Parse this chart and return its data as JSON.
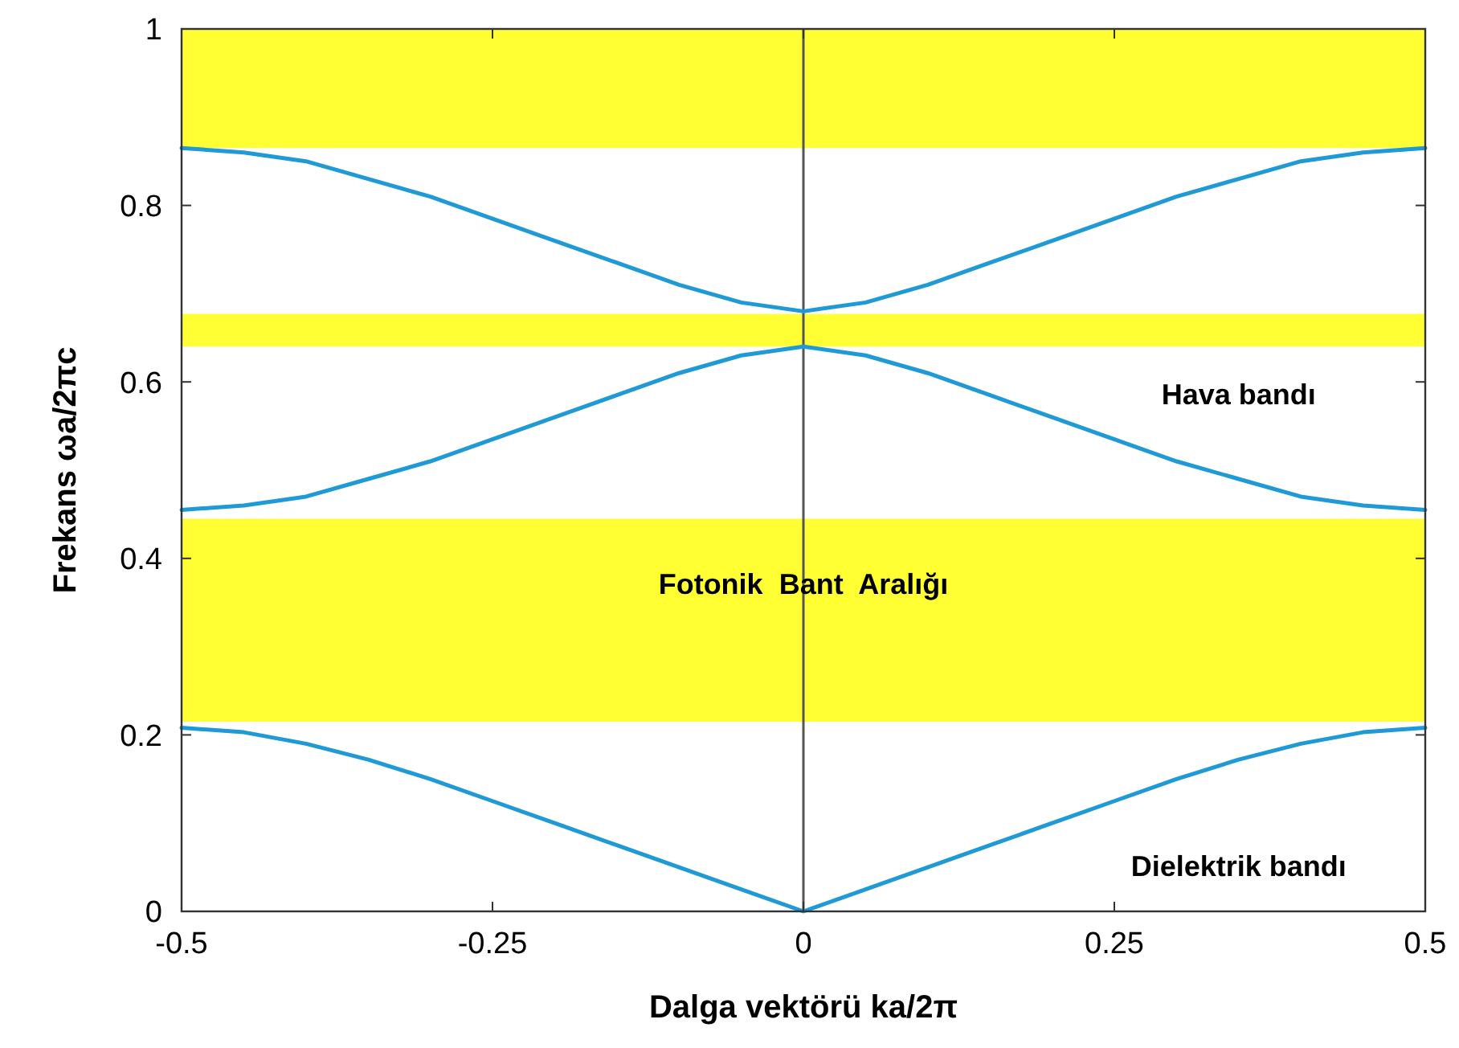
{
  "chart_data": {
    "type": "line",
    "xlabel": "Dalga vektörü ka/2π",
    "ylabel": "Frekans ωa/2πc",
    "xlim": [
      -0.5,
      0.5
    ],
    "ylim": [
      0,
      1
    ],
    "xticks": [
      -0.5,
      -0.25,
      0,
      0.25,
      0.5
    ],
    "yticks": [
      0,
      0.2,
      0.4,
      0.6,
      0.8,
      1
    ],
    "grid": false,
    "series": [
      {
        "color": "#1f9ad6",
        "x": [
          -0.5,
          -0.45,
          -0.4,
          -0.35,
          -0.3,
          -0.25,
          -0.2,
          -0.15,
          -0.1,
          -0.05,
          0,
          0.05,
          0.1,
          0.15,
          0.2,
          0.25,
          0.3,
          0.35,
          0.4,
          0.45,
          0.5
        ],
        "values": [
          0.208,
          0.203,
          0.19,
          0.172,
          0.15,
          0.125,
          0.1,
          0.075,
          0.05,
          0.025,
          0,
          0.025,
          0.05,
          0.075,
          0.1,
          0.125,
          0.15,
          0.172,
          0.19,
          0.203,
          0.208
        ]
      },
      {
        "color": "#1f9ad6",
        "x": [
          -0.5,
          -0.45,
          -0.4,
          -0.35,
          -0.3,
          -0.25,
          -0.2,
          -0.15,
          -0.1,
          -0.05,
          0,
          0.05,
          0.1,
          0.15,
          0.2,
          0.25,
          0.3,
          0.35,
          0.4,
          0.45,
          0.5
        ],
        "values": [
          0.455,
          0.46,
          0.47,
          0.49,
          0.51,
          0.535,
          0.56,
          0.585,
          0.61,
          0.63,
          0.64,
          0.63,
          0.61,
          0.585,
          0.56,
          0.535,
          0.51,
          0.49,
          0.47,
          0.46,
          0.455
        ]
      },
      {
        "color": "#1f9ad6",
        "x": [
          -0.5,
          -0.45,
          -0.4,
          -0.35,
          -0.3,
          -0.25,
          -0.2,
          -0.15,
          -0.1,
          -0.05,
          0,
          0.05,
          0.1,
          0.15,
          0.2,
          0.25,
          0.3,
          0.35,
          0.4,
          0.45,
          0.5
        ],
        "values": [
          0.865,
          0.86,
          0.85,
          0.83,
          0.81,
          0.785,
          0.76,
          0.735,
          0.71,
          0.69,
          0.68,
          0.69,
          0.71,
          0.735,
          0.76,
          0.785,
          0.81,
          0.83,
          0.85,
          0.86,
          0.865
        ]
      }
    ],
    "bands": [
      {
        "axis": "y",
        "from": 0.865,
        "to": 1,
        "color": "#ffff33"
      },
      {
        "axis": "y",
        "from": 0.64,
        "to": 0.677,
        "color": "#ffff33"
      },
      {
        "axis": "y",
        "from": 0.215,
        "to": 0.445,
        "color": "#ffff33"
      }
    ],
    "ref_lines": [
      {
        "axis": "x",
        "value": 0,
        "color": "#555555"
      }
    ],
    "annotations": [
      "Hava bandı",
      "Fotonik  Bant  Aralığı",
      "Dielektrik bandı"
    ]
  }
}
